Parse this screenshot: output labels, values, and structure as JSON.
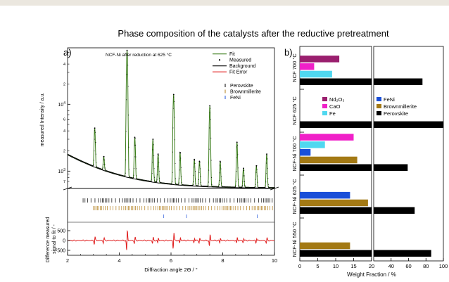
{
  "title": "Phase composition of the catalysts after the reductive pretreatment",
  "chart_data": [
    {
      "type": "line",
      "panel_label": "a)",
      "annotation": "NCF-Ni after reduction at 625 °C",
      "xlabel": "Diffraction angle 2Θ / °",
      "ylabel": "measured Intensity / a.u.",
      "ylabel_diff": "Difference measured signal to fit / -",
      "xlim": [
        2,
        10
      ],
      "x_ticks": [
        "2",
        "4",
        "6",
        "8",
        "10"
      ],
      "y_scale": "log",
      "y_tick_labels": [
        "10^4",
        "10^3"
      ],
      "diff_ylim": [
        -1000,
        1000
      ],
      "diff_tick_labels": [
        "500",
        "0",
        "-500"
      ],
      "grid": false,
      "legend": {
        "position": "top-right",
        "entries": [
          {
            "label": "Fit",
            "color": "#3a7d1a"
          },
          {
            "label": "Measured",
            "color": "#000000"
          },
          {
            "label": "Background",
            "color": "#000000"
          },
          {
            "label": "Fit Error",
            "color": "#e02020"
          }
        ]
      },
      "reflection_legend": [
        {
          "label": "Perovskite",
          "color": "#000000"
        },
        {
          "label": "Brownmillerite",
          "color": "#b07d1a"
        },
        {
          "label": "FeNi",
          "color": "#1a4fd8"
        }
      ],
      "peaks": [
        {
          "x": 3.05,
          "y": 4400
        },
        {
          "x": 3.4,
          "y": 1650
        },
        {
          "x": 4.3,
          "y": 64000
        },
        {
          "x": 4.6,
          "y": 3200
        },
        {
          "x": 5.3,
          "y": 3000
        },
        {
          "x": 5.5,
          "y": 1800
        },
        {
          "x": 6.1,
          "y": 14000
        },
        {
          "x": 6.35,
          "y": 1900
        },
        {
          "x": 6.9,
          "y": 1500
        },
        {
          "x": 7.1,
          "y": 1400
        },
        {
          "x": 7.5,
          "y": 9500
        },
        {
          "x": 7.9,
          "y": 1400
        },
        {
          "x": 8.55,
          "y": 2700
        },
        {
          "x": 8.8,
          "y": 1100
        },
        {
          "x": 9.3,
          "y": 1200
        },
        {
          "x": 9.7,
          "y": 1800
        }
      ]
    },
    {
      "type": "bar",
      "orientation": "horizontal",
      "panel_label": "b)",
      "xlabel": "Weight Fraction / %",
      "x_ticks": [
        "0",
        "5",
        "10",
        "15",
        "20",
        "40",
        "60",
        "80",
        "100"
      ],
      "x_axis_break": [
        20,
        20
      ],
      "xlim": [
        0,
        100
      ],
      "grid": false,
      "legend": {
        "position": "center",
        "entries": [
          {
            "label": "Nd₂O₃",
            "color": "#9a1f6e"
          },
          {
            "label": "CaO",
            "color": "#f020c8"
          },
          {
            "label": "Fe",
            "color": "#50d8f0"
          },
          {
            "label": "FeNi",
            "color": "#1a4fd8"
          },
          {
            "label": "Brownmillerite",
            "color": "#a37914"
          },
          {
            "label": "Perovskite",
            "color": "#000000"
          }
        ]
      },
      "groups": [
        {
          "name": "NCF 700 °C",
          "bars": [
            {
              "phase": "Nd₂O₃",
              "value": 11
            },
            {
              "phase": "CaO",
              "value": 4
            },
            {
              "phase": "Fe",
              "value": 9
            },
            {
              "phase": "Perovskite",
              "value": 76
            }
          ]
        },
        {
          "name": "NCF 625 °C",
          "bars": [
            {
              "phase": "Perovskite",
              "value": 100
            }
          ]
        },
        {
          "name": "NCF-Ni 700 °C",
          "bars": [
            {
              "phase": "CaO",
              "value": 15
            },
            {
              "phase": "Fe",
              "value": 7
            },
            {
              "phase": "FeNi",
              "value": 3
            },
            {
              "phase": "Brownmillerite",
              "value": 16
            },
            {
              "phase": "Perovskite",
              "value": 59
            }
          ]
        },
        {
          "name": "NCF-Ni 625 °C",
          "bars": [
            {
              "phase": "FeNi",
              "value": 14
            },
            {
              "phase": "Brownmillerite",
              "value": 19
            },
            {
              "phase": "Perovskite",
              "value": 67
            }
          ]
        },
        {
          "name": "NCF-Ni 550 °C",
          "bars": [
            {
              "phase": "Brownmillerite",
              "value": 14
            },
            {
              "phase": "Perovskite",
              "value": 86
            }
          ]
        }
      ]
    }
  ]
}
